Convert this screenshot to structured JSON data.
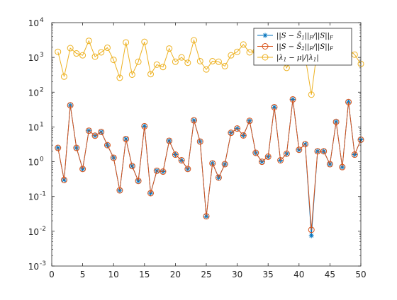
{
  "chart_data": {
    "type": "line",
    "title": "",
    "xlabel": "",
    "ylabel": "",
    "yscale": "log",
    "xlim": [
      0,
      50
    ],
    "ylim": [
      0.001,
      10000
    ],
    "xticks": [
      0,
      5,
      10,
      15,
      20,
      25,
      30,
      35,
      40,
      45,
      50
    ],
    "xtick_labels": [
      "0",
      "5",
      "10",
      "15",
      "20",
      "25",
      "30",
      "35",
      "40",
      "45",
      "50"
    ],
    "yticks": [
      0.001,
      0.01,
      0.1,
      1,
      10,
      100,
      1000,
      10000
    ],
    "ytick_labels": [
      {
        "base": "10",
        "exp": "-3"
      },
      {
        "base": "10",
        "exp": "-2"
      },
      {
        "base": "10",
        "exp": "-1"
      },
      {
        "base": "10",
        "exp": "0"
      },
      {
        "base": "10",
        "exp": "1"
      },
      {
        "base": "10",
        "exp": "2"
      },
      {
        "base": "10",
        "exp": "3"
      },
      {
        "base": "10",
        "exp": "4"
      }
    ],
    "grid": false,
    "legend_position": "top-right",
    "x": [
      1,
      2,
      3,
      4,
      5,
      6,
      7,
      8,
      9,
      10,
      11,
      12,
      13,
      14,
      15,
      16,
      17,
      18,
      19,
      20,
      21,
      22,
      23,
      24,
      25,
      26,
      27,
      28,
      29,
      30,
      31,
      32,
      33,
      34,
      35,
      36,
      37,
      38,
      39,
      40,
      41,
      42,
      43,
      44,
      45,
      46,
      47,
      48,
      49,
      50
    ],
    "series": [
      {
        "name": "|S − Ŝ₁||F / ||S||F",
        "color": "#0072BD",
        "marker": "asterisk",
        "values": [
          2.5,
          0.3,
          42,
          2.5,
          0.62,
          7.8,
          5.6,
          7.2,
          3.0,
          1.3,
          0.15,
          4.5,
          0.75,
          0.28,
          10.5,
          0.125,
          0.55,
          0.52,
          4.0,
          1.6,
          1.1,
          0.62,
          15.5,
          3.8,
          0.027,
          0.9,
          0.35,
          0.85,
          6.8,
          9.0,
          5.7,
          15,
          1.8,
          1.0,
          1.4,
          37,
          1.1,
          1.7,
          62,
          2.2,
          3.2,
          0.0075,
          2.0,
          2.0,
          0.85,
          14,
          0.7,
          52,
          1.6,
          4.3
        ]
      },
      {
        "name": "|S − Ŝ₂||F / ||S||F",
        "color": "#D95319",
        "marker": "circle",
        "values": [
          2.5,
          0.3,
          42,
          2.5,
          0.62,
          7.8,
          5.6,
          7.2,
          3.0,
          1.3,
          0.15,
          4.5,
          0.75,
          0.28,
          10.5,
          0.125,
          0.55,
          0.52,
          4.0,
          1.6,
          1.1,
          0.62,
          15.5,
          3.8,
          0.027,
          0.9,
          0.35,
          0.85,
          6.8,
          9.0,
          5.7,
          15,
          1.8,
          1.0,
          1.4,
          37,
          1.1,
          1.7,
          62,
          2.2,
          3.2,
          0.011,
          2.0,
          2.0,
          0.85,
          14,
          0.7,
          52,
          1.6,
          4.3
        ]
      },
      {
        "name": "|λ₁ − μ| / |λ₁|",
        "color": "#EDB120",
        "marker": "circle",
        "values": [
          1450,
          280,
          1850,
          1300,
          1150,
          3000,
          1050,
          1400,
          1900,
          850,
          260,
          2700,
          320,
          750,
          2800,
          330,
          620,
          530,
          1800,
          750,
          1000,
          700,
          3100,
          780,
          450,
          780,
          750,
          560,
          1150,
          1450,
          2350,
          1400,
          1500,
          1100,
          1100,
          2050,
          1250,
          500,
          1250,
          1450,
          1050,
          85,
          2000,
          2250,
          2000,
          2150,
          1950,
          1700,
          1200,
          650
        ]
      }
    ],
    "legend": {
      "entries": [
        {
          "parts": [
            "||S − Ŝ",
            "1",
            "||",
            "F",
            "/||S||",
            "F"
          ]
        },
        {
          "parts": [
            "||S − Ŝ",
            "2",
            "||",
            "F",
            "/||S||",
            "F"
          ]
        },
        {
          "parts": [
            "|λ",
            "1",
            " − μ|/|λ",
            "1",
            "|",
            ""
          ]
        }
      ]
    }
  }
}
